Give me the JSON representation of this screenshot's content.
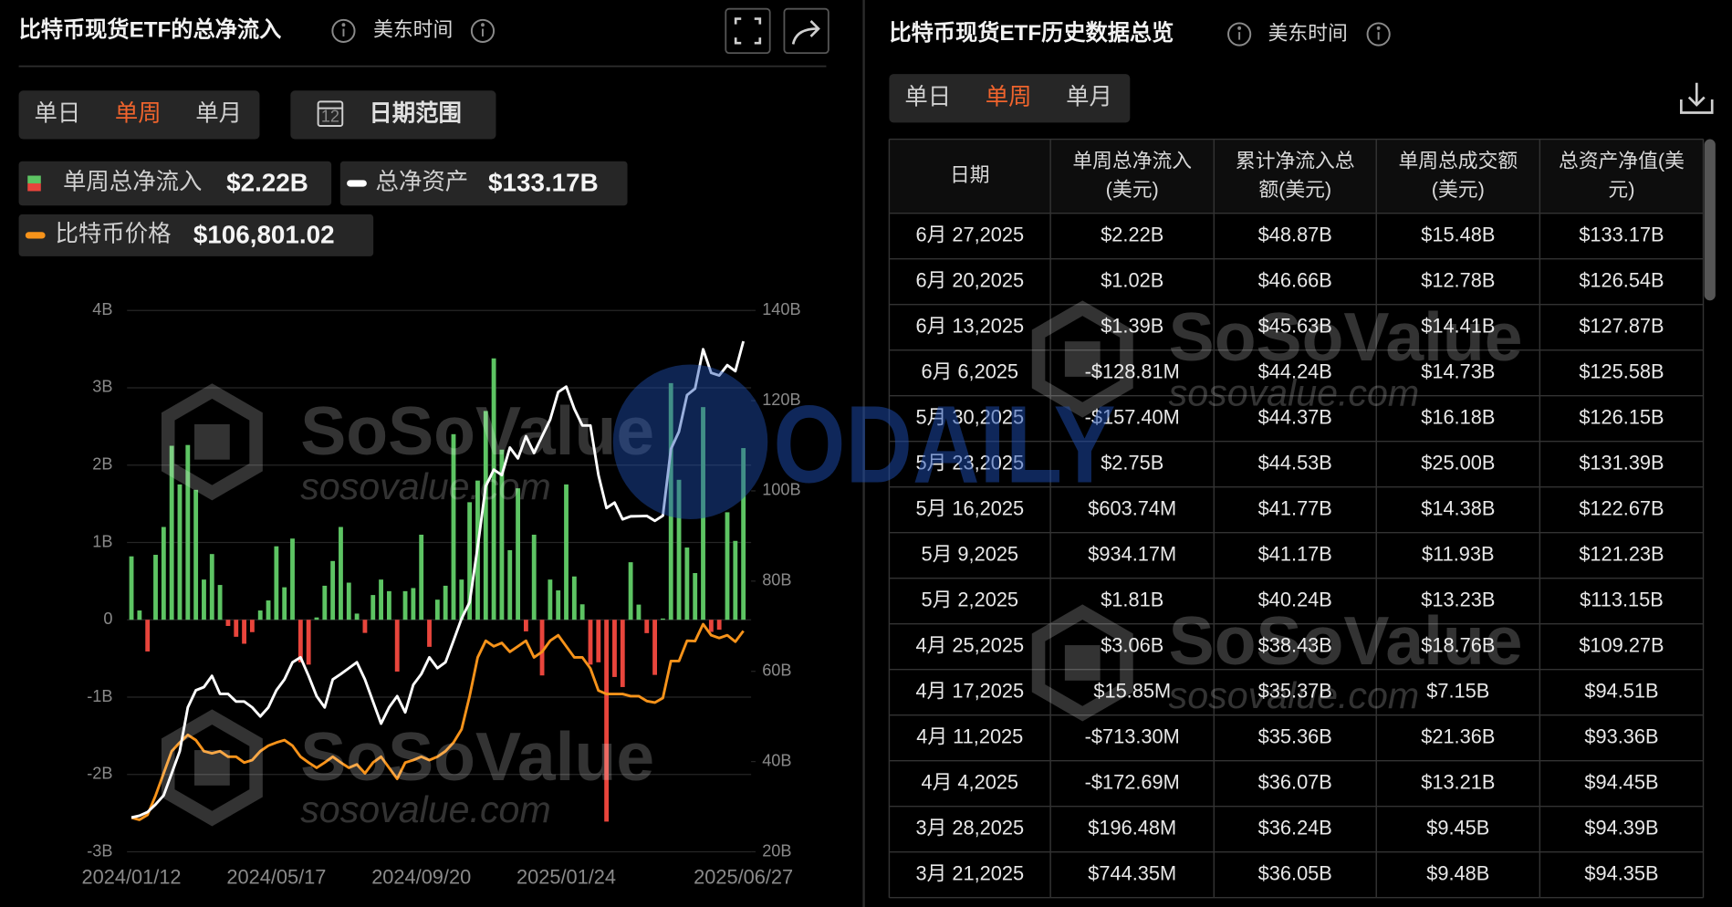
{
  "left_panel": {
    "title": "比特币现货ETF的总净流入",
    "timezone": "美东时间",
    "range_tabs": [
      "单日",
      "单周",
      "单月"
    ],
    "active_tab": 1,
    "active_color": "#f0642d",
    "calendar_day": "12",
    "date_range": "日期范围"
  },
  "chart_data": {
    "type": "combo",
    "categories": [
      "2024/01/12",
      null,
      null,
      null,
      null,
      null,
      null,
      null,
      null,
      null,
      null,
      null,
      null,
      null,
      null,
      null,
      null,
      null,
      "2024/05/17",
      null,
      null,
      null,
      null,
      null,
      null,
      null,
      null,
      null,
      null,
      null,
      null,
      null,
      null,
      null,
      null,
      null,
      "2024/09/20",
      null,
      null,
      null,
      null,
      null,
      null,
      null,
      null,
      null,
      null,
      null,
      null,
      null,
      null,
      null,
      null,
      null,
      "2025/01/24",
      null,
      null,
      null,
      null,
      null,
      null,
      null,
      null,
      null,
      null,
      null,
      null,
      null,
      null,
      null,
      null,
      null,
      null,
      null,
      null,
      null,
      "2025/06/27"
    ],
    "series": [
      {
        "name": "单周总净流入",
        "type": "bar",
        "color": "#5dc463",
        "negative_color": "#e8453c",
        "legend_value": "$2.22B",
        "values": [
          0.82,
          0.12,
          -0.41,
          0.84,
          1.2,
          2.25,
          1.75,
          2.26,
          1.68,
          0.52,
          0.85,
          0.45,
          -0.08,
          -0.22,
          -0.31,
          -0.16,
          0.12,
          0.25,
          0.95,
          0.42,
          1.05,
          -0.55,
          -0.58,
          0.03,
          0.44,
          0.76,
          1.2,
          0.48,
          0.08,
          -0.17,
          0.32,
          0.52,
          0.37,
          -0.67,
          0.37,
          0.41,
          1.1,
          -0.35,
          0.26,
          0.44,
          2.4,
          0.52,
          1.52,
          1.8,
          2.7,
          3.38,
          2.2,
          0.9,
          1.7,
          -0.15,
          1.1,
          -0.72,
          0.52,
          0.38,
          1.75,
          0.56,
          0.2,
          -0.58,
          -0.55,
          -2.61,
          -0.74,
          -0.87,
          0.744,
          0.196,
          -0.173,
          -0.713,
          0.016,
          3.06,
          1.81,
          0.934,
          0.604,
          2.75,
          -0.157,
          -0.129,
          1.39,
          1.02,
          2.22
        ]
      },
      {
        "name": "总净资产",
        "type": "line",
        "color": "#ffffff",
        "axis": "y2",
        "legend_value": "$133.17B",
        "values": [
          27.6,
          28,
          28.8,
          30.5,
          32.5,
          37.4,
          42.3,
          52,
          55.8,
          56.5,
          59,
          55,
          55,
          53.3,
          53.3,
          52,
          50,
          52,
          55.8,
          58.2,
          62,
          63.1,
          59,
          54.5,
          52,
          58.2,
          59.4,
          60.7,
          62,
          58.2,
          53.3,
          48.4,
          52,
          54.5,
          50.9,
          57,
          59.4,
          63.1,
          60.7,
          62,
          66.8,
          71.7,
          75.3,
          87.6,
          101,
          104.7,
          103.5,
          109.6,
          107.2,
          112.1,
          108.4,
          112.1,
          115.8,
          121.9,
          123.1,
          118.2,
          114.5,
          114.5,
          103.5,
          96.2,
          97.4,
          93.7,
          94.35,
          94.39,
          94.45,
          93.36,
          94.51,
          109.27,
          113.15,
          121.23,
          122.67,
          131.39,
          126.15,
          125.58,
          127.87,
          126.54,
          133.17
        ]
      },
      {
        "name": "比特币价格",
        "type": "line",
        "color": "#f7931a",
        "axis": "y3",
        "legend_value": "$106,801.02",
        "values": [
          46100,
          45400,
          47000,
          53300,
          60500,
          67700,
          70500,
          73000,
          71300,
          67700,
          67000,
          67700,
          65900,
          65900,
          64000,
          64800,
          67700,
          69500,
          70500,
          71300,
          69500,
          65900,
          64000,
          62300,
          64000,
          65900,
          64000,
          62300,
          63400,
          60500,
          64000,
          65900,
          62300,
          58700,
          64000,
          64800,
          65900,
          64800,
          65900,
          67700,
          70500,
          74800,
          85600,
          98200,
          103600,
          101800,
          102900,
          100000,
          101800,
          103600,
          98200,
          100000,
          103600,
          105400,
          101800,
          98200,
          98200,
          94600,
          87400,
          86300,
          86300,
          86300,
          85600,
          85600,
          84000,
          83500,
          85000,
          97000,
          97000,
          103600,
          103500,
          109000,
          105400,
          104500,
          105400,
          103300,
          106801.02
        ]
      }
    ],
    "ylim": [
      -3,
      4
    ],
    "yticks": [
      {
        "value": 4,
        "label": "4B"
      },
      {
        "value": 3,
        "label": "3B"
      },
      {
        "value": 2,
        "label": "2B"
      },
      {
        "value": 1,
        "label": "1B"
      },
      0,
      {
        "value": -1,
        "label": "-1B"
      },
      {
        "value": -2,
        "label": "-2B"
      },
      {
        "value": -3,
        "label": "-3B"
      }
    ],
    "y2lim": [
      20,
      140
    ],
    "y2ticks": [
      {
        "value": 140,
        "label": "140B"
      },
      {
        "value": 120,
        "label": "120B"
      },
      {
        "value": 100,
        "label": "100B"
      },
      {
        "value": 80,
        "label": "80B"
      },
      {
        "value": 60,
        "label": "60B"
      },
      {
        "value": 40,
        "label": "40B"
      },
      {
        "value": 20,
        "label": "20B"
      }
    ],
    "y3lim": [
      35000,
      211000
    ],
    "grid": true
  },
  "table": {
    "title": "比特币现货ETF历史数据总览",
    "timezone": "美东时间",
    "range_tabs": [
      "单日",
      "单周",
      "单月"
    ],
    "active_tab": 1,
    "active_color": "#f0642d",
    "positive_color": "#5dc463",
    "negative_color": "#e8453c",
    "header": [
      [
        "日期"
      ],
      [
        "单周总净流入",
        "(美元)"
      ],
      [
        "累计净流入总",
        "额(美元)"
      ],
      [
        "单周总成交额",
        "(美元)"
      ],
      [
        "总资产净值(美",
        "元)"
      ]
    ],
    "rows": [
      [
        "6月 27,2025",
        "$2.22B",
        "$48.87B",
        "$15.48B",
        "$133.17B"
      ],
      [
        "6月 20,2025",
        "$1.02B",
        "$46.66B",
        "$12.78B",
        "$126.54B"
      ],
      [
        "6月 13,2025",
        "$1.39B",
        "$45.63B",
        "$14.41B",
        "$127.87B"
      ],
      [
        "6月 6,2025",
        "-$128.81M",
        "$44.24B",
        "$14.73B",
        "$125.58B"
      ],
      [
        "5月 30,2025",
        "-$157.40M",
        "$44.37B",
        "$16.18B",
        "$126.15B"
      ],
      [
        "5月 23,2025",
        "$2.75B",
        "$44.53B",
        "$25.00B",
        "$131.39B"
      ],
      [
        "5月 16,2025",
        "$603.74M",
        "$41.77B",
        "$14.38B",
        "$122.67B"
      ],
      [
        "5月 9,2025",
        "$934.17M",
        "$41.17B",
        "$11.93B",
        "$121.23B"
      ],
      [
        "5月 2,2025",
        "$1.81B",
        "$40.24B",
        "$13.23B",
        "$113.15B"
      ],
      [
        "4月 25,2025",
        "$3.06B",
        "$38.43B",
        "$18.76B",
        "$109.27B"
      ],
      [
        "4月 17,2025",
        "$15.85M",
        "$35.37B",
        "$7.15B",
        "$94.51B"
      ],
      [
        "4月 11,2025",
        "-$713.30M",
        "$35.36B",
        "$21.36B",
        "$93.36B"
      ],
      [
        "4月 4,2025",
        "-$172.69M",
        "$36.07B",
        "$13.21B",
        "$94.45B"
      ],
      [
        "3月 28,2025",
        "$196.48M",
        "$36.24B",
        "$9.45B",
        "$94.39B"
      ],
      [
        "3月 21,2025",
        "$744.35M",
        "$36.05B",
        "$9.48B",
        "$94.35B"
      ]
    ]
  },
  "watermark": {
    "brand": "SoSoValue",
    "site": "sosovalue.com",
    "publisher": "ODAILY"
  }
}
